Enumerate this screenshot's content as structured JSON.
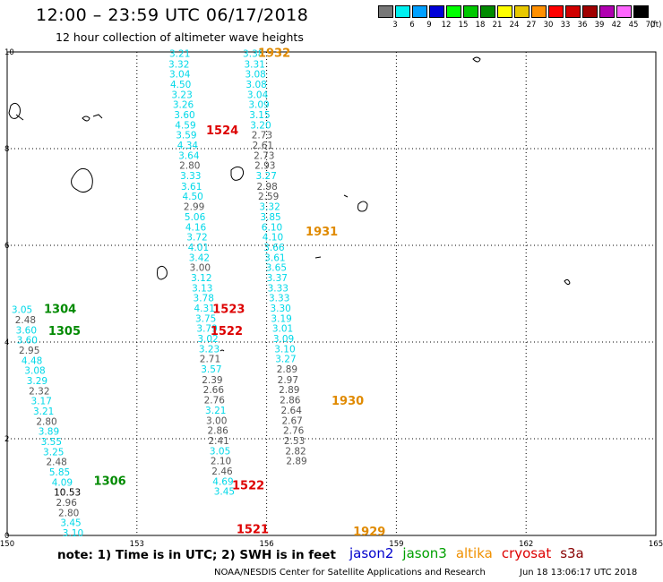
{
  "header": {
    "title": "12:00 – 23:59 UTC 06/17/2018",
    "subtitle": "12 hour collection of altimeter wave heights"
  },
  "legend": {
    "unit": "(ft)",
    "items": [
      {
        "label": "3",
        "color": "#777777"
      },
      {
        "label": "6",
        "color": "#00f0f0"
      },
      {
        "label": "9",
        "color": "#00a0ff"
      },
      {
        "label": "12",
        "color": "#0000d8"
      },
      {
        "label": "15",
        "color": "#00ff00"
      },
      {
        "label": "18",
        "color": "#00c800"
      },
      {
        "label": "21",
        "color": "#008a00"
      },
      {
        "label": "24",
        "color": "#ffff00"
      },
      {
        "label": "27",
        "color": "#e8c800"
      },
      {
        "label": "30",
        "color": "#ff9000"
      },
      {
        "label": "33",
        "color": "#ff0000"
      },
      {
        "label": "36",
        "color": "#d00000"
      },
      {
        "label": "39",
        "color": "#a00000"
      },
      {
        "label": "42",
        "color": "#b000b0"
      },
      {
        "label": "45",
        "color": "#ff66ff"
      },
      {
        "label": "70",
        "color": "#000000"
      }
    ]
  },
  "map": {
    "x_ticks": [
      "150",
      "153",
      "156",
      "159",
      "162",
      "165"
    ],
    "y_ticks": [
      "0",
      "2",
      "4",
      "6",
      "8",
      "10"
    ],
    "x_range": [
      150,
      165
    ],
    "y_range": [
      0,
      10
    ]
  },
  "satellites": [
    {
      "name": "jason2",
      "color": "#0000cc"
    },
    {
      "name": "jason3",
      "color": "#00a000"
    },
    {
      "name": "altika",
      "color": "#f09000"
    },
    {
      "name": "cryosat",
      "color": "#dd0000"
    },
    {
      "name": "s3a",
      "color": "#880000"
    }
  ],
  "passes": [
    {
      "label": "1932",
      "lon": 155.8,
      "lat": 9.9,
      "color": "#e08a00"
    },
    {
      "label": "1524",
      "lon": 154.6,
      "lat": 8.3,
      "color": "#dd0000"
    },
    {
      "label": "1931",
      "lon": 156.9,
      "lat": 6.2,
      "color": "#e08a00"
    },
    {
      "label": "1304",
      "lon": 150.85,
      "lat": 4.6,
      "color": "#008a00"
    },
    {
      "label": "1305",
      "lon": 150.95,
      "lat": 4.15,
      "color": "#008a00"
    },
    {
      "label": "1523",
      "lon": 154.75,
      "lat": 4.6,
      "color": "#dd0000"
    },
    {
      "label": "1522",
      "lon": 154.7,
      "lat": 4.15,
      "color": "#dd0000"
    },
    {
      "label": "1930",
      "lon": 157.5,
      "lat": 2.7,
      "color": "#e08a00"
    },
    {
      "label": "1306",
      "lon": 152.0,
      "lat": 1.05,
      "color": "#008a00"
    },
    {
      "label": "1522",
      "lon": 155.2,
      "lat": 0.95,
      "color": "#dd0000"
    },
    {
      "label": "1521",
      "lon": 155.3,
      "lat": 0.05,
      "color": "#dd0000"
    },
    {
      "label": "1929",
      "lon": 158.0,
      "lat": 0.0,
      "color": "#e08a00"
    }
  ],
  "tracks": [
    {
      "name": "track-1524",
      "points": [
        {
          "lon": 153.75,
          "lat": 9.9,
          "v": "3.21",
          "c": "#00d8e8"
        },
        {
          "lon": 153.73,
          "lat": 9.68,
          "v": "3.32",
          "c": "#00d8e8"
        },
        {
          "lon": 153.75,
          "lat": 9.47,
          "v": "3.04",
          "c": "#00d8e8"
        },
        {
          "lon": 153.77,
          "lat": 9.26,
          "v": "4.50",
          "c": "#00d8e8"
        },
        {
          "lon": 153.8,
          "lat": 9.05,
          "v": "3.23",
          "c": "#00d8e8"
        },
        {
          "lon": 153.83,
          "lat": 8.84,
          "v": "3.26",
          "c": "#00d8e8"
        },
        {
          "lon": 153.86,
          "lat": 8.63,
          "v": "3.60",
          "c": "#00d8e8"
        },
        {
          "lon": 153.88,
          "lat": 8.42,
          "v": "4.59",
          "c": "#00d8e8"
        },
        {
          "lon": 153.9,
          "lat": 8.21,
          "v": "3.59",
          "c": "#00d8e8"
        },
        {
          "lon": 153.93,
          "lat": 8.0,
          "v": "4.34",
          "c": "#00d8e8"
        },
        {
          "lon": 153.96,
          "lat": 7.79,
          "v": "3.64",
          "c": "#00d8e8"
        },
        {
          "lon": 153.98,
          "lat": 7.58,
          "v": "2.80",
          "c": "#555555"
        },
        {
          "lon": 154.0,
          "lat": 7.37,
          "v": "3.33",
          "c": "#00d8e8"
        },
        {
          "lon": 154.02,
          "lat": 7.15,
          "v": "3.61",
          "c": "#00d8e8"
        },
        {
          "lon": 154.05,
          "lat": 6.94,
          "v": "4.50",
          "c": "#00d8e8"
        },
        {
          "lon": 154.08,
          "lat": 6.73,
          "v": "2.99",
          "c": "#555555"
        },
        {
          "lon": 154.1,
          "lat": 6.52,
          "v": "5.06",
          "c": "#00d8e8"
        },
        {
          "lon": 154.12,
          "lat": 6.31,
          "v": "4.16",
          "c": "#00d8e8"
        }
      ]
    },
    {
      "name": "track-1523",
      "points": [
        {
          "lon": 154.15,
          "lat": 6.1,
          "v": "3.72",
          "c": "#00d8e8"
        },
        {
          "lon": 154.18,
          "lat": 5.89,
          "v": "4.01",
          "c": "#00d8e8"
        },
        {
          "lon": 154.2,
          "lat": 5.68,
          "v": "3.42",
          "c": "#00d8e8"
        },
        {
          "lon": 154.22,
          "lat": 5.47,
          "v": "3.00",
          "c": "#555555"
        },
        {
          "lon": 154.25,
          "lat": 5.26,
          "v": "3.12",
          "c": "#00d8e8"
        },
        {
          "lon": 154.27,
          "lat": 5.05,
          "v": "3.13",
          "c": "#00d8e8"
        },
        {
          "lon": 154.3,
          "lat": 4.84,
          "v": "3.78",
          "c": "#00d8e8"
        },
        {
          "lon": 154.32,
          "lat": 4.63,
          "v": "4.31",
          "c": "#00d8e8"
        },
        {
          "lon": 154.35,
          "lat": 4.42,
          "v": "3.75",
          "c": "#00d8e8"
        }
      ]
    },
    {
      "name": "track-1522",
      "points": [
        {
          "lon": 154.38,
          "lat": 4.21,
          "v": "3.79",
          "c": "#00d8e8"
        },
        {
          "lon": 154.4,
          "lat": 4.0,
          "v": "3.02",
          "c": "#00d8e8"
        },
        {
          "lon": 154.43,
          "lat": 3.79,
          "v": "3.23",
          "c": "#00d8e8"
        },
        {
          "lon": 154.45,
          "lat": 3.58,
          "v": "2.71",
          "c": "#555555"
        },
        {
          "lon": 154.48,
          "lat": 3.37,
          "v": "3.57",
          "c": "#00d8e8"
        },
        {
          "lon": 154.5,
          "lat": 3.15,
          "v": "2.39",
          "c": "#555555"
        },
        {
          "lon": 154.53,
          "lat": 2.94,
          "v": "2.66",
          "c": "#555555"
        },
        {
          "lon": 154.55,
          "lat": 2.73,
          "v": "2.76",
          "c": "#555555"
        },
        {
          "lon": 154.58,
          "lat": 2.52,
          "v": "3.21",
          "c": "#00d8e8"
        },
        {
          "lon": 154.6,
          "lat": 2.31,
          "v": "3.00",
          "c": "#555555"
        },
        {
          "lon": 154.63,
          "lat": 2.1,
          "v": "2.86",
          "c": "#555555"
        },
        {
          "lon": 154.65,
          "lat": 1.89,
          "v": "2.41",
          "c": "#555555"
        },
        {
          "lon": 154.68,
          "lat": 1.68,
          "v": "3.05",
          "c": "#00d8e8"
        }
      ]
    },
    {
      "name": "track-1521",
      "points": [
        {
          "lon": 154.7,
          "lat": 1.47,
          "v": "2.10",
          "c": "#555555"
        },
        {
          "lon": 154.73,
          "lat": 1.26,
          "v": "2.46",
          "c": "#555555"
        },
        {
          "lon": 154.75,
          "lat": 1.05,
          "v": "4.69",
          "c": "#00d8e8"
        },
        {
          "lon": 154.78,
          "lat": 0.84,
          "v": "3.45",
          "c": "#00d8e8"
        }
      ]
    },
    {
      "name": "track-1932",
      "points": [
        {
          "lon": 155.45,
          "lat": 9.9,
          "v": "3.38",
          "c": "#00d8e8"
        },
        {
          "lon": 155.48,
          "lat": 9.68,
          "v": "3.31",
          "c": "#00d8e8"
        },
        {
          "lon": 155.5,
          "lat": 9.47,
          "v": "3.08",
          "c": "#00d8e8"
        },
        {
          "lon": 155.52,
          "lat": 9.26,
          "v": "3.08",
          "c": "#00d8e8"
        },
        {
          "lon": 155.55,
          "lat": 9.05,
          "v": "3.04",
          "c": "#00d8e8"
        },
        {
          "lon": 155.58,
          "lat": 8.84,
          "v": "3.09",
          "c": "#00d8e8"
        },
        {
          "lon": 155.6,
          "lat": 8.63,
          "v": "3.15",
          "c": "#00d8e8"
        },
        {
          "lon": 155.62,
          "lat": 8.42,
          "v": "3.20",
          "c": "#00d8e8"
        },
        {
          "lon": 155.65,
          "lat": 8.21,
          "v": "2.73",
          "c": "#555555"
        },
        {
          "lon": 155.67,
          "lat": 8.0,
          "v": "2.61",
          "c": "#555555"
        },
        {
          "lon": 155.7,
          "lat": 7.79,
          "v": "2.73",
          "c": "#555555"
        },
        {
          "lon": 155.72,
          "lat": 7.58,
          "v": "2.93",
          "c": "#555555"
        },
        {
          "lon": 155.75,
          "lat": 7.37,
          "v": "3.27",
          "c": "#00d8e8"
        },
        {
          "lon": 155.77,
          "lat": 7.15,
          "v": "2.98",
          "c": "#555555"
        },
        {
          "lon": 155.8,
          "lat": 6.94,
          "v": "2.59",
          "c": "#555555"
        },
        {
          "lon": 155.83,
          "lat": 6.73,
          "v": "3.32",
          "c": "#00d8e8"
        }
      ]
    },
    {
      "name": "track-1931",
      "points": [
        {
          "lon": 155.85,
          "lat": 6.52,
          "v": "3.85",
          "c": "#00d8e8"
        },
        {
          "lon": 155.88,
          "lat": 6.31,
          "v": "6.10",
          "c": "#00d8e8"
        },
        {
          "lon": 155.9,
          "lat": 6.1,
          "v": "4.10",
          "c": "#00d8e8"
        },
        {
          "lon": 155.93,
          "lat": 5.89,
          "v": "3.66",
          "c": "#00d8e8"
        },
        {
          "lon": 155.95,
          "lat": 5.68,
          "v": "3.61",
          "c": "#00d8e8"
        },
        {
          "lon": 155.98,
          "lat": 5.47,
          "v": "3.65",
          "c": "#00d8e8"
        },
        {
          "lon": 156.0,
          "lat": 5.26,
          "v": "3.37",
          "c": "#00d8e8"
        },
        {
          "lon": 156.02,
          "lat": 5.05,
          "v": "3.33",
          "c": "#00d8e8"
        },
        {
          "lon": 156.05,
          "lat": 4.84,
          "v": "3.33",
          "c": "#00d8e8"
        }
      ]
    },
    {
      "name": "track-1930",
      "points": [
        {
          "lon": 156.08,
          "lat": 4.63,
          "v": "3.30",
          "c": "#00d8e8"
        },
        {
          "lon": 156.1,
          "lat": 4.42,
          "v": "3.19",
          "c": "#00d8e8"
        },
        {
          "lon": 156.13,
          "lat": 4.21,
          "v": "3.01",
          "c": "#00d8e8"
        },
        {
          "lon": 156.15,
          "lat": 4.0,
          "v": "3.09",
          "c": "#00d8e8"
        },
        {
          "lon": 156.18,
          "lat": 3.79,
          "v": "3.10",
          "c": "#00d8e8"
        },
        {
          "lon": 156.2,
          "lat": 3.58,
          "v": "3.27",
          "c": "#00d8e8"
        },
        {
          "lon": 156.23,
          "lat": 3.37,
          "v": "2.89",
          "c": "#555555"
        },
        {
          "lon": 156.25,
          "lat": 3.15,
          "v": "2.97",
          "c": "#555555"
        },
        {
          "lon": 156.28,
          "lat": 2.94,
          "v": "2.89",
          "c": "#555555"
        },
        {
          "lon": 156.3,
          "lat": 2.73,
          "v": "2.86",
          "c": "#555555"
        },
        {
          "lon": 156.33,
          "lat": 2.52,
          "v": "2.64",
          "c": "#555555"
        },
        {
          "lon": 156.35,
          "lat": 2.31,
          "v": "2.67",
          "c": "#555555"
        },
        {
          "lon": 156.38,
          "lat": 2.1,
          "v": "2.76",
          "c": "#555555"
        },
        {
          "lon": 156.4,
          "lat": 1.89,
          "v": "2.53",
          "c": "#555555"
        }
      ]
    },
    {
      "name": "track-1929",
      "points": [
        {
          "lon": 156.43,
          "lat": 1.68,
          "v": "2.82",
          "c": "#555555"
        },
        {
          "lon": 156.45,
          "lat": 1.47,
          "v": "2.89",
          "c": "#555555"
        }
      ]
    },
    {
      "name": "track-1304",
      "points": [
        {
          "lon": 150.1,
          "lat": 4.6,
          "v": "3.05",
          "c": "#00d8e8"
        },
        {
          "lon": 150.18,
          "lat": 4.39,
          "v": "2.48",
          "c": "#555555"
        },
        {
          "lon": 150.2,
          "lat": 4.18,
          "v": "3.60",
          "c": "#00d8e8"
        },
        {
          "lon": 150.22,
          "lat": 3.97,
          "v": "3.60",
          "c": "#00d8e8"
        }
      ]
    },
    {
      "name": "track-1305",
      "points": [
        {
          "lon": 150.27,
          "lat": 3.76,
          "v": "2.95",
          "c": "#555555"
        },
        {
          "lon": 150.33,
          "lat": 3.55,
          "v": "4.48",
          "c": "#00d8e8"
        },
        {
          "lon": 150.4,
          "lat": 3.34,
          "v": "3.08",
          "c": "#00d8e8"
        },
        {
          "lon": 150.45,
          "lat": 3.13,
          "v": "3.29",
          "c": "#00d8e8"
        },
        {
          "lon": 150.5,
          "lat": 2.92,
          "v": "2.32",
          "c": "#555555"
        },
        {
          "lon": 150.55,
          "lat": 2.71,
          "v": "3.17",
          "c": "#00d8e8"
        },
        {
          "lon": 150.6,
          "lat": 2.5,
          "v": "3.21",
          "c": "#00d8e8"
        },
        {
          "lon": 150.67,
          "lat": 2.29,
          "v": "2.80",
          "c": "#555555"
        },
        {
          "lon": 150.72,
          "lat": 2.08,
          "v": "3.89",
          "c": "#00d8e8"
        },
        {
          "lon": 150.78,
          "lat": 1.87,
          "v": "3.55",
          "c": "#00d8e8"
        },
        {
          "lon": 150.83,
          "lat": 1.66,
          "v": "3.25",
          "c": "#00d8e8"
        }
      ]
    },
    {
      "name": "track-1306",
      "points": [
        {
          "lon": 150.9,
          "lat": 1.45,
          "v": "2.48",
          "c": "#555555"
        },
        {
          "lon": 150.97,
          "lat": 1.24,
          "v": "5.85",
          "c": "#00d8e8"
        },
        {
          "lon": 151.03,
          "lat": 1.03,
          "v": "4.09",
          "c": "#00d8e8"
        },
        {
          "lon": 151.08,
          "lat": 0.82,
          "v": "10.53",
          "c": "#000000"
        },
        {
          "lon": 151.13,
          "lat": 0.61,
          "v": "2.96",
          "c": "#555555"
        },
        {
          "lon": 151.18,
          "lat": 0.4,
          "v": "2.80",
          "c": "#555555"
        },
        {
          "lon": 151.23,
          "lat": 0.19,
          "v": "3.45",
          "c": "#00d8e8"
        },
        {
          "lon": 151.28,
          "lat": -0.02,
          "v": "3.10",
          "c": "#00d8e8"
        }
      ]
    }
  ],
  "note": "note:  1) Time is in UTC;  2) SWH is in feet",
  "footer": {
    "center": "NOAA/NESDIS Center for Satellite Applications and Research",
    "timestamp": "Jun 18 13:06:17 UTC 2018"
  }
}
